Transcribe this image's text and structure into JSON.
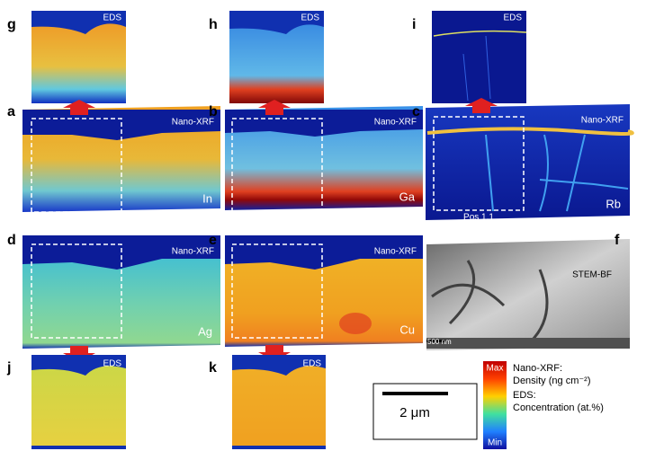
{
  "panels": [
    {
      "letter": "g",
      "label": "EDS"
    },
    {
      "letter": "h",
      "label": "EDS"
    },
    {
      "letter": "i",
      "label": "EDS"
    },
    {
      "letter": "a",
      "label": "Nano-XRF",
      "element": "In"
    },
    {
      "letter": "b",
      "label": "Nano-XRF",
      "element": "Ga"
    },
    {
      "letter": "c",
      "label": "Nano-XRF",
      "element": "Rb",
      "position": "Pos 1.1"
    },
    {
      "letter": "d",
      "label": "Nano-XRF",
      "element": "Ag"
    },
    {
      "letter": "e",
      "label": "Nano-XRF",
      "element": "Cu"
    },
    {
      "letter": "f",
      "label": "STEM-BF",
      "scale": "500 nm"
    },
    {
      "letter": "j",
      "label": "EDS"
    },
    {
      "letter": "k",
      "label": "EDS"
    }
  ],
  "scale_bar": "2 μm",
  "colorbar": {
    "max": "Max",
    "min": "Min"
  },
  "legend": [
    "Nano-XRF:",
    "Density (ng cm⁻²)",
    "EDS:",
    "Concentration (at.%)"
  ]
}
